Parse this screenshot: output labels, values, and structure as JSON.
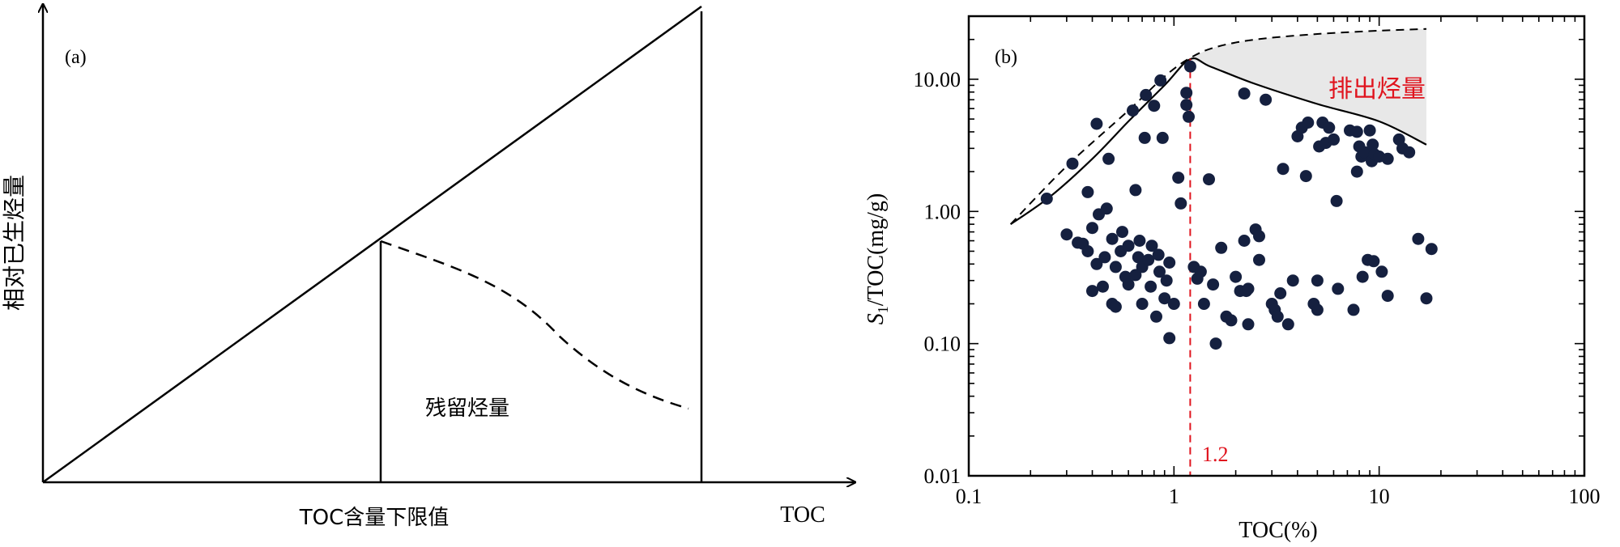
{
  "panel_a": {
    "label": "(a)",
    "ylabel": "相对已生烃量",
    "xlabel": "TOC",
    "threshold_label": "TOC含量下限值",
    "region_label": "残留烃量"
  },
  "panel_b": {
    "label": "(b)",
    "region_label": "排出烃量",
    "threshold_value_label": "1.2",
    "ylabel_italic": "S",
    "ylabel_sub": "1",
    "ylabel_rest": "/TOC(mg/g)",
    "xlabel": "TOC(%)"
  },
  "colors": {
    "points": "#15203f",
    "threshold": "#e0141e",
    "fill": "#e8e8e8",
    "region_text_b": "#e0141e"
  },
  "chart_data": [
    {
      "type": "line",
      "panel": "a",
      "title": "",
      "xlabel": "TOC",
      "ylabel": "相对已生烃量",
      "x_marker": "TOC含量下限值",
      "annotation": "残留烃量",
      "series": [
        {
          "style": "solid"
        },
        {
          "style": "dashed"
        }
      ]
    },
    {
      "type": "scatter",
      "panel": "b",
      "title": "",
      "xlabel": "TOC(%)",
      "ylabel": "S1/TOC(mg/g)",
      "xscale": "log",
      "yscale": "log",
      "xlim": [
        0.1,
        100
      ],
      "ylim": [
        0.01,
        30
      ],
      "x_ticks": [
        "0.1",
        "1",
        "10",
        "100"
      ],
      "y_ticks": [
        "0.01",
        "0.10",
        "1.00",
        "10.00"
      ],
      "threshold_x": 1.2,
      "annotation": "排出烃量",
      "upper_envelope_dashed": [
        [
          0.16,
          0.8
        ],
        [
          0.3,
          2.2
        ],
        [
          0.6,
          5.8
        ],
        [
          0.9,
          10.5
        ],
        [
          1.2,
          14.5
        ],
        [
          1.6,
          17.5
        ],
        [
          2.5,
          20
        ],
        [
          5,
          22
        ],
        [
          10,
          23.3
        ],
        [
          17,
          24
        ]
      ],
      "upper_envelope_solid": [
        [
          0.16,
          0.8
        ],
        [
          0.25,
          1.3
        ],
        [
          0.4,
          2.5
        ],
        [
          0.6,
          4.8
        ],
        [
          0.9,
          9
        ],
        [
          1.2,
          14.2
        ],
        [
          1.5,
          12.5
        ],
        [
          2.5,
          9.2
        ],
        [
          5,
          6.5
        ],
        [
          10,
          4.8
        ],
        [
          17,
          3.2
        ]
      ],
      "points": [
        [
          0.24,
          1.25
        ],
        [
          0.3,
          0.67
        ],
        [
          0.32,
          2.3
        ],
        [
          0.34,
          0.58
        ],
        [
          0.36,
          0.57
        ],
        [
          0.38,
          0.5
        ],
        [
          0.38,
          1.4
        ],
        [
          0.4,
          0.25
        ],
        [
          0.4,
          0.75
        ],
        [
          0.42,
          4.6
        ],
        [
          0.42,
          0.4
        ],
        [
          0.43,
          0.95
        ],
        [
          0.45,
          0.27
        ],
        [
          0.46,
          0.45
        ],
        [
          0.47,
          1.05
        ],
        [
          0.48,
          2.5
        ],
        [
          0.5,
          0.62
        ],
        [
          0.5,
          0.2
        ],
        [
          0.52,
          0.19
        ],
        [
          0.52,
          0.38
        ],
        [
          0.55,
          0.5
        ],
        [
          0.56,
          0.7
        ],
        [
          0.58,
          0.32
        ],
        [
          0.6,
          0.55
        ],
        [
          0.6,
          0.28
        ],
        [
          0.63,
          5.8
        ],
        [
          0.65,
          1.45
        ],
        [
          0.65,
          0.33
        ],
        [
          0.67,
          0.45
        ],
        [
          0.68,
          0.6
        ],
        [
          0.7,
          0.2
        ],
        [
          0.7,
          0.38
        ],
        [
          0.72,
          3.6
        ],
        [
          0.73,
          7.6
        ],
        [
          0.75,
          0.43
        ],
        [
          0.77,
          0.27
        ],
        [
          0.78,
          0.55
        ],
        [
          0.8,
          6.3
        ],
        [
          0.82,
          0.16
        ],
        [
          0.84,
          0.47
        ],
        [
          0.85,
          0.35
        ],
        [
          0.86,
          9.8
        ],
        [
          0.88,
          3.6
        ],
        [
          0.9,
          0.22
        ],
        [
          0.92,
          0.3
        ],
        [
          0.95,
          0.41
        ],
        [
          0.95,
          0.11
        ],
        [
          1.0,
          0.2
        ],
        [
          1.05,
          1.8
        ],
        [
          1.08,
          1.15
        ],
        [
          1.15,
          7.9
        ],
        [
          1.15,
          6.4
        ],
        [
          1.18,
          5.2
        ],
        [
          1.2,
          12.5
        ],
        [
          1.25,
          0.38
        ],
        [
          1.3,
          0.31
        ],
        [
          1.35,
          0.35
        ],
        [
          1.4,
          0.2
        ],
        [
          1.48,
          1.75
        ],
        [
          1.55,
          0.28
        ],
        [
          1.6,
          0.1
        ],
        [
          1.7,
          0.53
        ],
        [
          1.8,
          0.16
        ],
        [
          1.9,
          0.15
        ],
        [
          2.0,
          0.32
        ],
        [
          2.1,
          0.25
        ],
        [
          2.2,
          7.8
        ],
        [
          2.2,
          0.6
        ],
        [
          2.25,
          0.25
        ],
        [
          2.3,
          0.14
        ],
        [
          2.3,
          0.26
        ],
        [
          2.5,
          0.73
        ],
        [
          2.6,
          0.43
        ],
        [
          2.6,
          0.65
        ],
        [
          2.8,
          7.0
        ],
        [
          3.0,
          0.2
        ],
        [
          3.1,
          0.18
        ],
        [
          3.2,
          0.16
        ],
        [
          3.3,
          0.24
        ],
        [
          3.4,
          2.1
        ],
        [
          3.6,
          0.14
        ],
        [
          3.8,
          0.3
        ],
        [
          4.0,
          3.7
        ],
        [
          4.2,
          4.3
        ],
        [
          4.4,
          1.85
        ],
        [
          4.5,
          4.7
        ],
        [
          4.8,
          0.2
        ],
        [
          5.0,
          0.3
        ],
        [
          5.0,
          0.18
        ],
        [
          5.1,
          3.1
        ],
        [
          5.3,
          4.7
        ],
        [
          5.5,
          3.3
        ],
        [
          5.7,
          4.3
        ],
        [
          6.0,
          3.5
        ],
        [
          6.2,
          1.2
        ],
        [
          6.3,
          0.26
        ],
        [
          7.2,
          4.1
        ],
        [
          7.5,
          0.18
        ],
        [
          7.8,
          2.0
        ],
        [
          7.8,
          4.0
        ],
        [
          8.0,
          3.1
        ],
        [
          8.2,
          2.6
        ],
        [
          8.3,
          0.32
        ],
        [
          8.5,
          2.8
        ],
        [
          8.8,
          0.43
        ],
        [
          9.0,
          4.1
        ],
        [
          9.2,
          2.4
        ],
        [
          9.3,
          3.2
        ],
        [
          9.4,
          0.42
        ],
        [
          9.5,
          2.7
        ],
        [
          10.0,
          2.6
        ],
        [
          10.3,
          0.35
        ],
        [
          11.0,
          2.5
        ],
        [
          11.0,
          0.23
        ],
        [
          12.5,
          3.5
        ],
        [
          13.0,
          3.0
        ],
        [
          14.0,
          2.8
        ],
        [
          15.5,
          0.62
        ],
        [
          17.0,
          0.22
        ],
        [
          18.0,
          0.52
        ]
      ]
    }
  ]
}
